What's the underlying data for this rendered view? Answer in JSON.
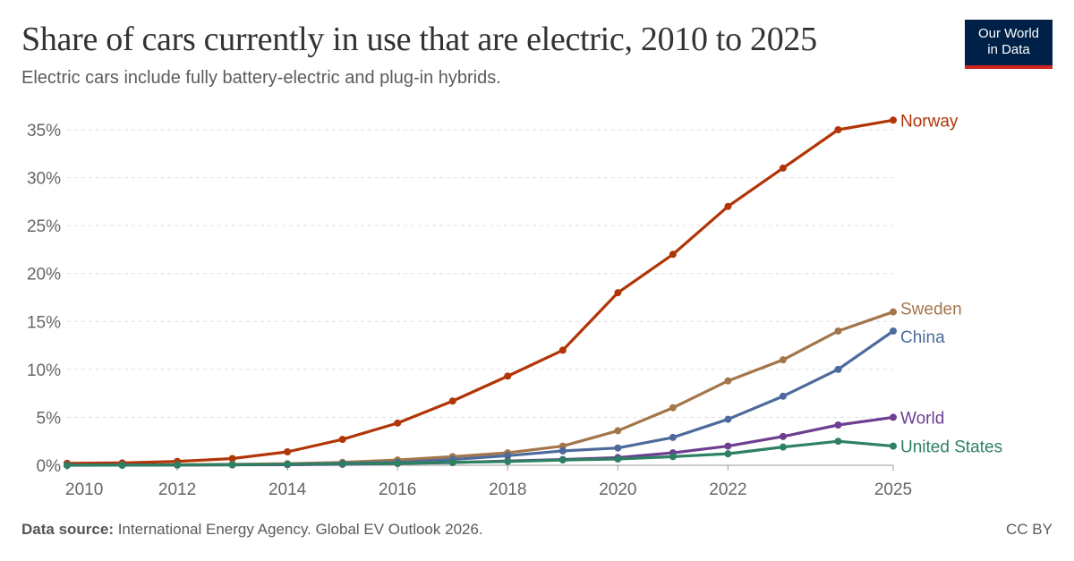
{
  "header": {
    "title": "Share of cars currently in use that are electric, 2010 to 2025",
    "subtitle": "Electric cars include fully battery-electric and plug-in hybrids."
  },
  "logo": {
    "line1": "Our World",
    "line2": "in Data"
  },
  "footer": {
    "source_label": "Data source:",
    "source_text": " International Energy Agency. Global EV Outlook 2026.",
    "license": "CC BY"
  },
  "chart_data": {
    "type": "line",
    "x": [
      2010,
      2011,
      2012,
      2013,
      2014,
      2015,
      2016,
      2017,
      2018,
      2019,
      2020,
      2021,
      2022,
      2023,
      2024,
      2025
    ],
    "xlim": [
      2010,
      2025
    ],
    "ylim": [
      0,
      35
    ],
    "x_ticks": [
      "2010",
      "2012",
      "2014",
      "2016",
      "2018",
      "2020",
      "2022",
      "2025"
    ],
    "x_tick_values": [
      2010,
      2012,
      2014,
      2016,
      2018,
      2020,
      2022,
      2025
    ],
    "y_ticks": [
      "0%",
      "5%",
      "10%",
      "15%",
      "20%",
      "25%",
      "30%",
      "35%"
    ],
    "y_tick_values": [
      0,
      5,
      10,
      15,
      20,
      25,
      30,
      35
    ],
    "grid": "horizontal dashed",
    "legend": "inline labels at line ends",
    "series": [
      {
        "name": "Norway",
        "color": "#b13507",
        "values": [
          0.2,
          0.25,
          0.4,
          0.7,
          1.4,
          2.7,
          4.4,
          6.7,
          9.3,
          12,
          18,
          22,
          27,
          31,
          35,
          36
        ]
      },
      {
        "name": "Sweden",
        "color": "#a2764a",
        "values": [
          0.02,
          0.03,
          0.06,
          0.1,
          0.16,
          0.3,
          0.55,
          0.9,
          1.3,
          2.0,
          3.6,
          6.0,
          8.8,
          11,
          14,
          16
        ]
      },
      {
        "name": "China",
        "color": "#4c6a9c",
        "values": [
          0.01,
          0.02,
          0.03,
          0.05,
          0.1,
          0.2,
          0.3,
          0.6,
          1.0,
          1.5,
          1.8,
          2.9,
          4.8,
          7.2,
          10,
          14
        ]
      },
      {
        "name": "World",
        "color": "#6d3e91",
        "values": [
          0.01,
          0.01,
          0.02,
          0.04,
          0.06,
          0.1,
          0.18,
          0.28,
          0.45,
          0.6,
          0.8,
          1.3,
          2.0,
          3.0,
          4.2,
          5.0
        ]
      },
      {
        "name": "United States",
        "color": "#2d8062",
        "values": [
          0.0,
          0.01,
          0.03,
          0.06,
          0.1,
          0.15,
          0.2,
          0.3,
          0.4,
          0.55,
          0.65,
          0.9,
          1.2,
          1.9,
          2.5,
          2.0
        ]
      }
    ]
  }
}
